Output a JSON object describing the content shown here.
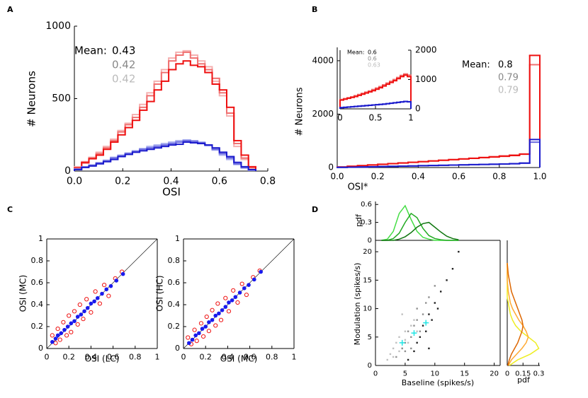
{
  "chart_data": [
    {
      "type": "histogram",
      "panel": "A",
      "xlabel": "OSI",
      "ylabel": "# Neurons",
      "xlim": [
        0,
        0.8
      ],
      "ylim": [
        0,
        1000
      ],
      "xticks": [
        {
          "value": 0,
          "label": "0.0"
        },
        0.2,
        0.4,
        0.6,
        0.8
      ],
      "yticks": [
        0,
        500,
        1000
      ],
      "bins": [
        0,
        0.03,
        0.06,
        0.09,
        0.12,
        0.15,
        0.18,
        0.21,
        0.24,
        0.27,
        0.3,
        0.33,
        0.36,
        0.39,
        0.42,
        0.45,
        0.48,
        0.51,
        0.54,
        0.57,
        0.6,
        0.63,
        0.66,
        0.69,
        0.72,
        0.75
      ],
      "mean_label": "Mean:",
      "means": [
        {
          "text": "0.43",
          "color": "#000000"
        },
        {
          "text": "0.42",
          "color": "#888888"
        },
        {
          "text": "0.42",
          "color": "#bbbbbb"
        }
      ],
      "series": [
        {
          "color": "#f5b0b0",
          "values": [
            30,
            65,
            95,
            130,
            170,
            220,
            280,
            330,
            390,
            460,
            540,
            620,
            700,
            780,
            820,
            830,
            800,
            760,
            720,
            620,
            520,
            380,
            170,
            80,
            20
          ]
        },
        {
          "color": "#f07070",
          "values": [
            25,
            55,
            90,
            120,
            160,
            210,
            270,
            320,
            370,
            440,
            520,
            600,
            680,
            760,
            800,
            820,
            780,
            740,
            700,
            640,
            540,
            400,
            190,
            90,
            25
          ]
        },
        {
          "color": "#ee1111",
          "values": [
            20,
            60,
            85,
            110,
            150,
            200,
            250,
            300,
            350,
            420,
            480,
            560,
            620,
            700,
            740,
            760,
            730,
            720,
            680,
            600,
            560,
            440,
            210,
            110,
            30
          ]
        },
        {
          "color": "#aab0f0",
          "values": [
            15,
            30,
            42,
            58,
            75,
            95,
            110,
            125,
            140,
            155,
            170,
            180,
            190,
            200,
            210,
            215,
            210,
            200,
            175,
            145,
            110,
            80,
            45,
            20,
            5
          ]
        },
        {
          "color": "#6b6be0",
          "values": [
            12,
            28,
            40,
            55,
            70,
            90,
            105,
            120,
            135,
            150,
            160,
            170,
            180,
            190,
            200,
            210,
            205,
            195,
            180,
            150,
            120,
            90,
            50,
            25,
            8
          ]
        },
        {
          "color": "#1a1acc",
          "values": [
            10,
            25,
            35,
            50,
            65,
            80,
            100,
            115,
            130,
            140,
            150,
            160,
            170,
            180,
            185,
            200,
            195,
            190,
            180,
            160,
            130,
            100,
            60,
            30,
            10
          ]
        }
      ]
    },
    {
      "type": "histogram",
      "panel": "B",
      "xlabel": "OSI*",
      "ylabel": "# Neurons",
      "xlim": [
        0,
        1
      ],
      "ylim": [
        0,
        4500
      ],
      "xticks": [
        {
          "value": 0,
          "label": "0.0"
        },
        0.2,
        0.4,
        0.6,
        0.8,
        {
          "value": 1,
          "label": "1.0"
        }
      ],
      "yticks": [
        0,
        2000,
        4000
      ],
      "bins": [
        0,
        0.05,
        0.1,
        0.15,
        0.2,
        0.25,
        0.3,
        0.35,
        0.4,
        0.45,
        0.5,
        0.55,
        0.6,
        0.65,
        0.7,
        0.75,
        0.8,
        0.85,
        0.9,
        0.95,
        1
      ],
      "mean_label": "Mean:",
      "means": [
        {
          "text": "0.8",
          "color": "#000000"
        },
        {
          "text": "0.79",
          "color": "#888888"
        },
        {
          "text": "0.79",
          "color": "#bbbbbb"
        }
      ],
      "series": [
        {
          "color": "#f07070",
          "values": [
            25,
            50,
            75,
            100,
            125,
            150,
            175,
            200,
            225,
            250,
            275,
            300,
            325,
            350,
            380,
            410,
            440,
            470,
            510,
            3850
          ]
        },
        {
          "color": "#ee1111",
          "values": [
            20,
            45,
            70,
            95,
            120,
            145,
            170,
            195,
            220,
            245,
            270,
            295,
            320,
            345,
            370,
            395,
            420,
            450,
            500,
            4200
          ]
        },
        {
          "color": "#6b6be0",
          "values": [
            6,
            13,
            21,
            29,
            37,
            45,
            53,
            61,
            69,
            77,
            85,
            93,
            101,
            109,
            117,
            125,
            133,
            140,
            160,
            950
          ]
        },
        {
          "color": "#1a1acc",
          "values": [
            5,
            12,
            20,
            28,
            36,
            44,
            52,
            60,
            68,
            76,
            84,
            92,
            100,
            108,
            116,
            124,
            132,
            145,
            170,
            1050
          ]
        }
      ]
    },
    {
      "type": "histogram",
      "y_axis_position": "right",
      "xlim": [
        0,
        1
      ],
      "ylim": [
        0,
        2000
      ],
      "xticks": [
        0,
        0.5,
        1
      ],
      "yticks": [
        0,
        1000,
        2000
      ],
      "bins": [
        0,
        0.05,
        0.1,
        0.15,
        0.2,
        0.25,
        0.3,
        0.35,
        0.4,
        0.45,
        0.5,
        0.55,
        0.6,
        0.65,
        0.7,
        0.75,
        0.8,
        0.85,
        0.9,
        0.95,
        1
      ],
      "mean_label": "Mean:",
      "means": [
        {
          "text": "0.6",
          "color": "#000000"
        },
        {
          "text": "0.6",
          "color": "#888888"
        },
        {
          "text": "0.63",
          "color": "#bbbbbb"
        }
      ],
      "series": [
        {
          "color": "#f07070",
          "values": [
            320,
            350,
            380,
            410,
            450,
            490,
            530,
            570,
            610,
            660,
            710,
            760,
            820,
            880,
            940,
            1000,
            1070,
            1140,
            1190,
            1150
          ]
        },
        {
          "color": "#ee1111",
          "values": [
            300,
            330,
            360,
            390,
            420,
            460,
            500,
            540,
            580,
            620,
            670,
            720,
            780,
            840,
            900,
            960,
            1030,
            1100,
            1150,
            1100
          ]
        },
        {
          "color": "#6b6be0",
          "values": [
            45,
            55,
            65,
            75,
            85,
            95,
            105,
            115,
            125,
            135,
            145,
            155,
            165,
            180,
            195,
            210,
            225,
            240,
            255,
            245
          ]
        },
        {
          "color": "#1a1acc",
          "values": [
            40,
            50,
            60,
            70,
            80,
            90,
            100,
            110,
            120,
            130,
            140,
            150,
            160,
            175,
            190,
            205,
            220,
            235,
            250,
            240
          ]
        }
      ]
    },
    {
      "type": "scatter",
      "panel": "C",
      "xlabel": "OSI (LC)",
      "ylabel": "OSI (MC)",
      "identity_line": true,
      "xlim": [
        0,
        1
      ],
      "ylim": [
        0,
        1
      ],
      "xticks": [
        0,
        0.2,
        0.4,
        0.6,
        0.8,
        1
      ],
      "yticks": [
        0,
        0.2,
        0.4,
        0.6,
        0.8,
        1
      ],
      "series": [
        {
          "color": "#ee1111",
          "marker": "open-circle",
          "x": [
            0.05,
            0.08,
            0.1,
            0.12,
            0.15,
            0.18,
            0.2,
            0.22,
            0.25,
            0.28,
            0.3,
            0.33,
            0.36,
            0.4,
            0.44,
            0.48,
            0.52,
            0.56,
            0.62,
            0.68
          ],
          "y": [
            0.12,
            0.05,
            0.18,
            0.08,
            0.24,
            0.12,
            0.3,
            0.15,
            0.34,
            0.22,
            0.4,
            0.27,
            0.45,
            0.33,
            0.52,
            0.41,
            0.58,
            0.48,
            0.64,
            0.7
          ]
        },
        {
          "color": "#1a1aee",
          "marker": "circle",
          "x": [
            0.05,
            0.08,
            0.1,
            0.13,
            0.16,
            0.19,
            0.22,
            0.25,
            0.28,
            0.31,
            0.34,
            0.37,
            0.4,
            0.43,
            0.46,
            0.5,
            0.54,
            0.58,
            0.63,
            0.69
          ],
          "y": [
            0.06,
            0.09,
            0.12,
            0.14,
            0.17,
            0.2,
            0.23,
            0.25,
            0.29,
            0.31,
            0.34,
            0.37,
            0.41,
            0.43,
            0.46,
            0.5,
            0.54,
            0.57,
            0.62,
            0.68
          ]
        }
      ]
    },
    {
      "type": "scatter",
      "xlabel": "OSI (MC)",
      "ylabel": "OSI (HC)",
      "identity_line": true,
      "xlim": [
        0,
        1
      ],
      "ylim": [
        0,
        1
      ],
      "xticks": [
        0,
        0.2,
        0.4,
        0.6,
        0.8,
        1
      ],
      "yticks": [
        0,
        0.2,
        0.4,
        0.6,
        0.8,
        1
      ],
      "series": [
        {
          "color": "#ee1111",
          "marker": "open-circle",
          "x": [
            0.04,
            0.07,
            0.1,
            0.12,
            0.16,
            0.18,
            0.21,
            0.23,
            0.26,
            0.29,
            0.31,
            0.34,
            0.38,
            0.41,
            0.45,
            0.49,
            0.53,
            0.57,
            0.63,
            0.69
          ],
          "y": [
            0.1,
            0.04,
            0.17,
            0.07,
            0.23,
            0.11,
            0.29,
            0.16,
            0.35,
            0.21,
            0.41,
            0.26,
            0.46,
            0.34,
            0.53,
            0.42,
            0.59,
            0.49,
            0.65,
            0.71
          ]
        },
        {
          "color": "#1a1aee",
          "marker": "circle",
          "x": [
            0.05,
            0.08,
            0.11,
            0.14,
            0.17,
            0.2,
            0.23,
            0.26,
            0.29,
            0.32,
            0.35,
            0.38,
            0.41,
            0.44,
            0.47,
            0.51,
            0.55,
            0.59,
            0.64,
            0.7
          ],
          "y": [
            0.05,
            0.08,
            0.12,
            0.14,
            0.18,
            0.2,
            0.24,
            0.26,
            0.3,
            0.32,
            0.35,
            0.38,
            0.42,
            0.44,
            0.47,
            0.51,
            0.55,
            0.58,
            0.63,
            0.7
          ]
        }
      ]
    },
    {
      "type": "scatter",
      "panel": "D",
      "xlabel": "Baseline (spikes/s)",
      "ylabel": "Modulation (spikes/s)",
      "xlim": [
        0,
        21
      ],
      "ylim": [
        0,
        22
      ],
      "xticks": [
        0,
        5,
        10,
        15,
        20
      ],
      "yticks": [
        0,
        5,
        10,
        15,
        20
      ],
      "series": [
        {
          "color": "#c0c0c0",
          "marker": "dot",
          "x": [
            2,
            2.5,
            3,
            3.5,
            4,
            4.5,
            5,
            5.5,
            6,
            3,
            4,
            5,
            6.5,
            7,
            4.5
          ],
          "y": [
            1,
            2,
            3,
            4,
            5,
            3,
            6,
            4,
            7,
            1.5,
            2.5,
            4.5,
            8,
            6,
            9
          ]
        },
        {
          "color": "#909090",
          "marker": "dot",
          "x": [
            3.5,
            4.5,
            5,
            5.5,
            6,
            6.5,
            7,
            7.5,
            8,
            8.5,
            6,
            7,
            9,
            5,
            10
          ],
          "y": [
            1.5,
            3,
            4,
            6,
            5,
            7,
            8,
            6,
            9,
            11,
            3,
            10,
            12,
            2.5,
            14
          ]
        },
        {
          "color": "#222222",
          "marker": "dot",
          "x": [
            5.5,
            6.5,
            7,
            7.5,
            8,
            8.5,
            9,
            9.5,
            10,
            10.5,
            11,
            12,
            13,
            9,
            14
          ],
          "y": [
            1,
            2.5,
            4,
            5,
            7,
            6,
            9,
            8,
            11,
            10,
            13,
            15,
            17,
            3,
            20
          ]
        },
        {
          "color": "#22e5e5",
          "marker": "plus",
          "x": [
            4.5,
            6.5,
            8.5
          ],
          "y": [
            4,
            5.7,
            7.5
          ]
        }
      ]
    },
    {
      "type": "line",
      "ylabel": "pdf",
      "xlim": [
        0,
        21
      ],
      "ylim": [
        0,
        0.65
      ],
      "yticks": [
        0,
        0.3,
        0.6
      ],
      "x": [
        1,
        2,
        3,
        4,
        5,
        6,
        7,
        8,
        9,
        10,
        11,
        12,
        13,
        14
      ],
      "series": [
        {
          "color": "#44dd44",
          "values": [
            0,
            0.02,
            0.15,
            0.45,
            0.58,
            0.35,
            0.15,
            0.05,
            0.02,
            0,
            0,
            0,
            0,
            0
          ]
        },
        {
          "color": "#22aa22",
          "values": [
            0,
            0,
            0.03,
            0.12,
            0.3,
            0.45,
            0.38,
            0.2,
            0.08,
            0.03,
            0.01,
            0,
            0,
            0
          ]
        },
        {
          "color": "#117711",
          "values": [
            0,
            0,
            0,
            0.02,
            0.06,
            0.13,
            0.22,
            0.28,
            0.3,
            0.22,
            0.14,
            0.07,
            0.03,
            0.01
          ]
        }
      ]
    },
    {
      "type": "line",
      "orientation": "horizontal",
      "xlabel": "pdf",
      "xlim": [
        0,
        0.31
      ],
      "ylim": [
        0,
        22
      ],
      "xticks": [
        0,
        0.15,
        0.3
      ],
      "y": [
        0,
        1,
        2,
        3,
        4,
        5,
        6,
        7,
        8,
        9,
        10,
        11,
        12,
        13,
        14,
        15,
        16,
        17,
        18
      ],
      "series": [
        {
          "color": "#eeee22",
          "values": [
            0.02,
            0.1,
            0.22,
            0.3,
            0.27,
            0.2,
            0.13,
            0.08,
            0.05,
            0.03,
            0.02,
            0.01,
            0,
            0,
            0,
            0,
            0,
            0,
            0
          ]
        },
        {
          "color": "#ffaa33",
          "values": [
            0.01,
            0.04,
            0.09,
            0.14,
            0.18,
            0.2,
            0.18,
            0.15,
            0.11,
            0.08,
            0.05,
            0.03,
            0.02,
            0.01,
            0.005,
            0,
            0,
            0,
            0
          ]
        },
        {
          "color": "#dd6600",
          "values": [
            0.005,
            0.02,
            0.04,
            0.07,
            0.1,
            0.12,
            0.14,
            0.15,
            0.14,
            0.12,
            0.1,
            0.08,
            0.06,
            0.04,
            0.03,
            0.02,
            0.01,
            0.005,
            0
          ]
        }
      ]
    }
  ]
}
